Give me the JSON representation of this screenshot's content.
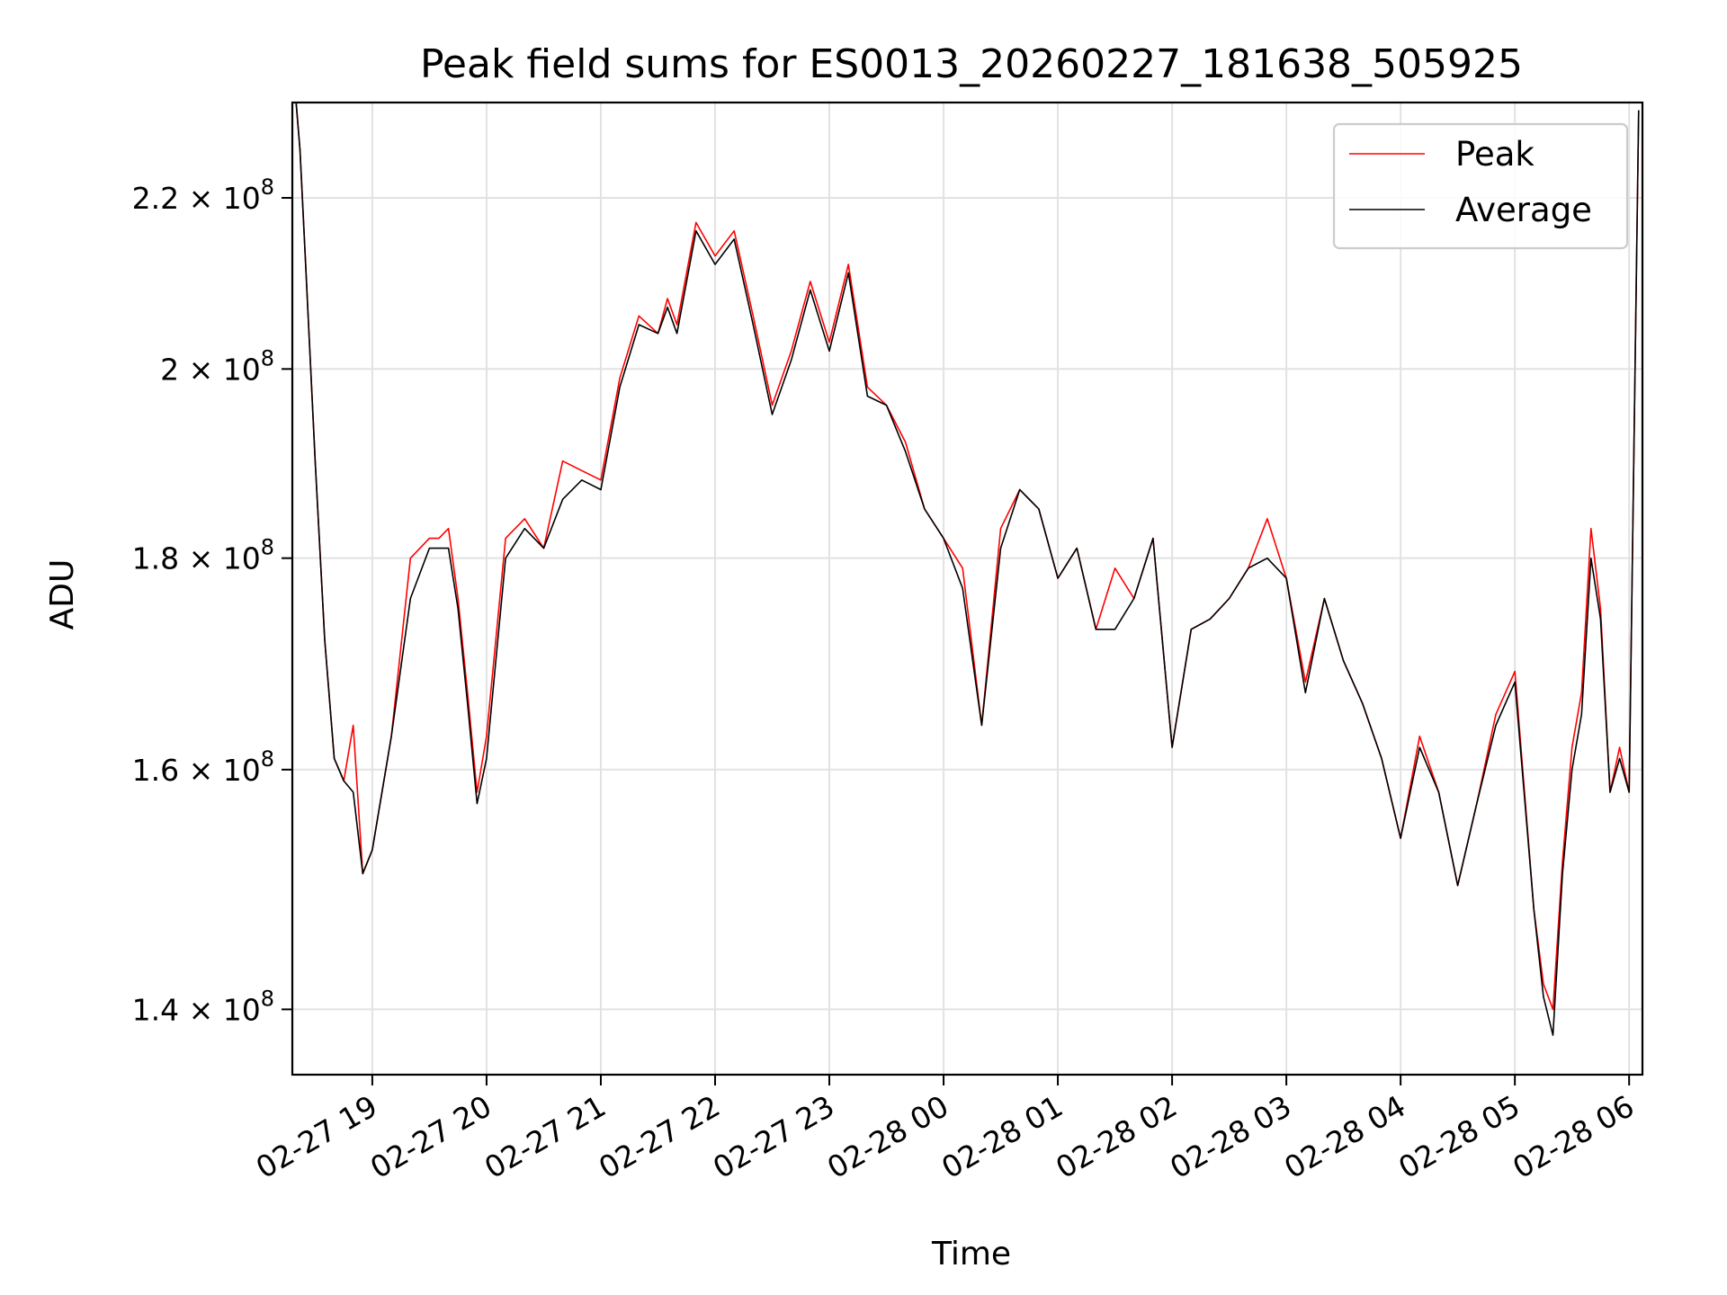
{
  "chart_data": {
    "type": "line",
    "title": "Peak field sums for ES0013_20260227_181638_505925",
    "xlabel": "Time",
    "ylabel": "ADU",
    "xlim": [
      "2026-02-27 18:18",
      "2026-02-28 06:07"
    ],
    "ylim": [
      135000000,
      232000000
    ],
    "yscale": "log",
    "grid": true,
    "legend_loc": "upper right",
    "x_ticks": [
      "02-27 19",
      "02-27 20",
      "02-27 21",
      "02-27 22",
      "02-27 23",
      "02-28 00",
      "02-28 01",
      "02-28 02",
      "02-28 03",
      "02-28 04",
      "02-28 05",
      "02-28 06"
    ],
    "y_ticks": [
      {
        "value": 140000000,
        "mant": "1.4",
        "exp": "8"
      },
      {
        "value": 160000000,
        "mant": "1.6",
        "exp": "8"
      },
      {
        "value": 180000000,
        "mant": "1.8",
        "exp": "8"
      },
      {
        "value": 200000000,
        "mant": "2",
        "exp": "8"
      },
      {
        "value": 220000000,
        "mant": "2.2",
        "exp": "8"
      }
    ],
    "times_sample": [
      "2026-02-27 18:20",
      "2026-02-27 18:22",
      "2026-02-27 18:25",
      "2026-02-27 18:30",
      "2026-02-27 18:35",
      "2026-02-27 18:40",
      "2026-02-27 18:45",
      "2026-02-27 18:50",
      "2026-02-27 18:55",
      "2026-02-27 19:00",
      "2026-02-27 19:10",
      "2026-02-27 19:20",
      "2026-02-27 19:30",
      "2026-02-27 19:35",
      "2026-02-27 19:40",
      "2026-02-27 19:45",
      "2026-02-27 19:50",
      "2026-02-27 19:55",
      "2026-02-27 20:00",
      "2026-02-27 20:10",
      "2026-02-27 20:20",
      "2026-02-27 20:30",
      "2026-02-27 20:40",
      "2026-02-27 20:50",
      "2026-02-27 21:00",
      "2026-02-27 21:10",
      "2026-02-27 21:20",
      "2026-02-27 21:30",
      "2026-02-27 21:35",
      "2026-02-27 21:40",
      "2026-02-27 21:50",
      "2026-02-27 22:00",
      "2026-02-27 22:10",
      "2026-02-27 22:20",
      "2026-02-27 22:30",
      "2026-02-27 22:40",
      "2026-02-27 22:50",
      "2026-02-27 23:00",
      "2026-02-27 23:10",
      "2026-02-27 23:20",
      "2026-02-27 23:30",
      "2026-02-27 23:40",
      "2026-02-27 23:50",
      "2026-02-28 00:00",
      "2026-02-28 00:10",
      "2026-02-28 00:20",
      "2026-02-28 00:30",
      "2026-02-28 00:40",
      "2026-02-28 00:50",
      "2026-02-28 01:00",
      "2026-02-28 01:10",
      "2026-02-28 01:20",
      "2026-02-28 01:30",
      "2026-02-28 01:40",
      "2026-02-28 01:50",
      "2026-02-28 02:00",
      "2026-02-28 02:10",
      "2026-02-28 02:20",
      "2026-02-28 02:30",
      "2026-02-28 02:40",
      "2026-02-28 02:50",
      "2026-02-28 03:00",
      "2026-02-28 03:10",
      "2026-02-28 03:20",
      "2026-02-28 03:30",
      "2026-02-28 03:40",
      "2026-02-28 03:50",
      "2026-02-28 04:00",
      "2026-02-28 04:10",
      "2026-02-28 04:20",
      "2026-02-28 04:30",
      "2026-02-28 04:40",
      "2026-02-28 04:50",
      "2026-02-28 05:00",
      "2026-02-28 05:10",
      "2026-02-28 05:15",
      "2026-02-28 05:20",
      "2026-02-28 05:25",
      "2026-02-28 05:30",
      "2026-02-28 05:35",
      "2026-02-28 05:40",
      "2026-02-28 05:45",
      "2026-02-28 05:50",
      "2026-02-28 05:55",
      "2026-02-28 06:00",
      "2026-02-28 06:05"
    ],
    "series": [
      {
        "name": "Peak",
        "color": "#ff0000",
        "values": [
          232000000,
          226000000,
          212000000,
          190000000,
          172000000,
          161000000,
          159000000,
          164000000,
          151000000,
          153000000,
          163000000,
          180000000,
          182000000,
          182000000,
          183000000,
          176000000,
          167000000,
          158000000,
          163000000,
          182000000,
          184000000,
          181000000,
          190000000,
          189000000,
          188000000,
          199000000,
          206000000,
          204000000,
          208000000,
          205000000,
          217000000,
          213000000,
          216000000,
          206000000,
          196000000,
          202000000,
          210000000,
          203000000,
          212000000,
          198000000,
          196000000,
          192000000,
          185000000,
          182000000,
          179000000,
          164000000,
          183000000,
          187000000,
          185000000,
          178000000,
          181000000,
          173000000,
          179000000,
          176000000,
          182000000,
          162000000,
          173000000,
          174000000,
          176000000,
          179000000,
          184000000,
          178000000,
          168000000,
          176000000,
          170000000,
          166000000,
          161000000,
          154000000,
          163000000,
          158000000,
          150000000,
          157000000,
          165000000,
          169000000,
          148000000,
          142000000,
          140000000,
          152000000,
          162000000,
          167000000,
          183000000,
          175000000,
          158000000,
          162000000,
          158000000,
          231000000
        ]
      },
      {
        "name": "Average",
        "color": "#000000",
        "values": [
          232000000,
          226000000,
          212000000,
          190000000,
          172000000,
          161000000,
          159000000,
          158000000,
          151000000,
          153000000,
          163000000,
          176000000,
          181000000,
          181000000,
          181000000,
          175000000,
          166000000,
          157000000,
          161000000,
          180000000,
          183000000,
          181000000,
          186000000,
          188000000,
          187000000,
          198000000,
          205000000,
          204000000,
          207000000,
          204000000,
          216000000,
          212000000,
          215000000,
          205000000,
          195000000,
          201000000,
          209000000,
          202000000,
          211000000,
          197000000,
          196000000,
          191000000,
          185000000,
          182000000,
          177000000,
          164000000,
          181000000,
          187000000,
          185000000,
          178000000,
          181000000,
          173000000,
          173000000,
          176000000,
          182000000,
          162000000,
          173000000,
          174000000,
          176000000,
          179000000,
          180000000,
          178000000,
          167000000,
          176000000,
          170000000,
          166000000,
          161000000,
          154000000,
          162000000,
          158000000,
          150000000,
          157000000,
          164000000,
          168000000,
          148000000,
          141000000,
          138000000,
          151000000,
          160000000,
          165000000,
          180000000,
          174000000,
          158000000,
          161000000,
          158000000,
          231000000
        ]
      }
    ]
  }
}
